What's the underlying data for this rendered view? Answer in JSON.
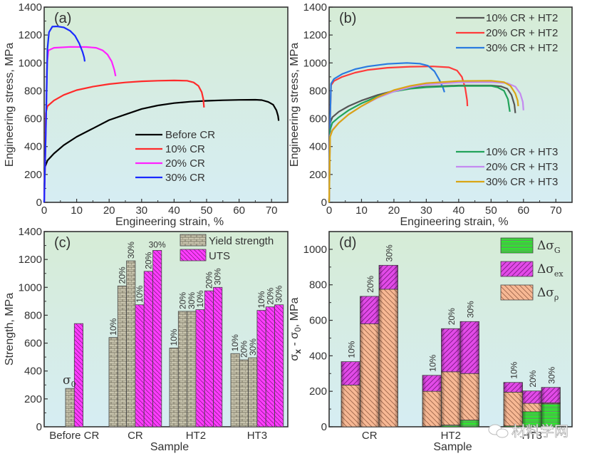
{
  "chart_data": [
    {
      "panel": "(a)",
      "type": "line",
      "xlabel": "Engineering strain, %",
      "ylabel": "Engineering stress, MPa",
      "xlim": [
        0,
        75
      ],
      "ylim": [
        0,
        1400
      ],
      "xticks": [
        0,
        10,
        20,
        30,
        40,
        50,
        60,
        70
      ],
      "yticks": [
        0,
        200,
        400,
        600,
        800,
        1000,
        1200,
        1400
      ],
      "legend_position": "bottom-center",
      "series": [
        {
          "name": "Before CR",
          "color": "#000000",
          "points": [
            [
              0,
              0
            ],
            [
              0.2,
              250
            ],
            [
              1,
              300
            ],
            [
              3,
              350
            ],
            [
              6,
              410
            ],
            [
              10,
              470
            ],
            [
              15,
              530
            ],
            [
              20,
              590
            ],
            [
              25,
              630
            ],
            [
              30,
              670
            ],
            [
              35,
              695
            ],
            [
              40,
              712
            ],
            [
              45,
              722
            ],
            [
              50,
              728
            ],
            [
              55,
              732
            ],
            [
              60,
              735
            ],
            [
              65,
              736
            ],
            [
              67,
              733
            ],
            [
              69,
              720
            ],
            [
              70.5,
              700
            ],
            [
              71.5,
              660
            ],
            [
              72,
              620
            ],
            [
              72.2,
              585
            ]
          ]
        },
        {
          "name": "10% CR",
          "color": "#ff2a2a",
          "points": [
            [
              0,
              0
            ],
            [
              0.3,
              300
            ],
            [
              0.5,
              640
            ],
            [
              1,
              690
            ],
            [
              3,
              730
            ],
            [
              6,
              770
            ],
            [
              10,
              805
            ],
            [
              15,
              830
            ],
            [
              20,
              848
            ],
            [
              25,
              860
            ],
            [
              30,
              868
            ],
            [
              35,
              872
            ],
            [
              40,
              874
            ],
            [
              44,
              872
            ],
            [
              46,
              860
            ],
            [
              47.5,
              835
            ],
            [
              48.5,
              790
            ],
            [
              49,
              740
            ],
            [
              49.2,
              680
            ]
          ]
        },
        {
          "name": "20% CR",
          "color": "#ff22ff",
          "points": [
            [
              0,
              0
            ],
            [
              0.5,
              500
            ],
            [
              0.9,
              1000
            ],
            [
              1.3,
              1090
            ],
            [
              3,
              1108
            ],
            [
              8,
              1115
            ],
            [
              13,
              1114
            ],
            [
              16,
              1108
            ],
            [
              18,
              1090
            ],
            [
              19.5,
              1060
            ],
            [
              20.8,
              1010
            ],
            [
              21.6,
              950
            ],
            [
              22,
              905
            ]
          ]
        },
        {
          "name": "30% CR",
          "color": "#1a2aff",
          "points": [
            [
              0,
              0
            ],
            [
              0.5,
              500
            ],
            [
              1,
              1100
            ],
            [
              1.5,
              1220
            ],
            [
              2.5,
              1260
            ],
            [
              4,
              1262
            ],
            [
              6,
              1255
            ],
            [
              8,
              1230
            ],
            [
              9.5,
              1195
            ],
            [
              10.8,
              1140
            ],
            [
              11.8,
              1080
            ],
            [
              12.3,
              1040
            ],
            [
              12.5,
              1010
            ]
          ]
        }
      ]
    },
    {
      "panel": "(b)",
      "type": "line",
      "xlabel": "Engineering strain, %",
      "ylabel": "Engineering stress, MPa",
      "xlim": [
        0,
        75
      ],
      "ylim": [
        0,
        1400
      ],
      "xticks": [
        0,
        10,
        20,
        30,
        40,
        50,
        60,
        70
      ],
      "yticks": [
        0,
        200,
        400,
        600,
        800,
        1000,
        1200,
        1400
      ],
      "legend_position": "top-right and bottom-right",
      "series": [
        {
          "name": "10% CR + HT2",
          "color": "#555555",
          "points": [
            [
              0,
              0
            ],
            [
              0.3,
              570
            ],
            [
              1,
              610
            ],
            [
              3,
              650
            ],
            [
              6,
              690
            ],
            [
              10,
              730
            ],
            [
              15,
              770
            ],
            [
              20,
              800
            ],
            [
              25,
              818
            ],
            [
              30,
              830
            ],
            [
              40,
              838
            ],
            [
              50,
              838
            ],
            [
              53,
              832
            ],
            [
              55,
              815
            ],
            [
              56.3,
              770
            ],
            [
              57.2,
              700
            ],
            [
              57.5,
              640
            ]
          ]
        },
        {
          "name": "20% CR + HT2",
          "color": "#ff3b3b",
          "points": [
            [
              0,
              0
            ],
            [
              0.3,
              600
            ],
            [
              0.6,
              840
            ],
            [
              1.5,
              870
            ],
            [
              4,
              900
            ],
            [
              8,
              930
            ],
            [
              12,
              950
            ],
            [
              18,
              965
            ],
            [
              25,
              973
            ],
            [
              32,
              975
            ],
            [
              37,
              968
            ],
            [
              39.5,
              945
            ],
            [
              41,
              900
            ],
            [
              42,
              820
            ],
            [
              42.6,
              730
            ],
            [
              42.7,
              690
            ]
          ]
        },
        {
          "name": "30% CR + HT2",
          "color": "#2a7ae0",
          "points": [
            [
              0,
              0
            ],
            [
              0.3,
              600
            ],
            [
              0.6,
              850
            ],
            [
              1.5,
              885
            ],
            [
              4,
              920
            ],
            [
              8,
              955
            ],
            [
              12,
              975
            ],
            [
              18,
              993
            ],
            [
              24,
              1000
            ],
            [
              28,
              995
            ],
            [
              30.5,
              980
            ],
            [
              32.5,
              940
            ],
            [
              34,
              880
            ],
            [
              35.2,
              820
            ],
            [
              35.6,
              790
            ]
          ]
        },
        {
          "name": "10% CR + HT3",
          "color": "#22a35a",
          "points": [
            [
              0,
              0
            ],
            [
              0.3,
              520
            ],
            [
              1,
              570
            ],
            [
              3,
              610
            ],
            [
              6,
              660
            ],
            [
              10,
              710
            ],
            [
              15,
              760
            ],
            [
              20,
              795
            ],
            [
              25,
              815
            ],
            [
              30,
              825
            ],
            [
              40,
              835
            ],
            [
              50,
              835
            ],
            [
              52,
              825
            ],
            [
              54,
              800
            ],
            [
              55.2,
              740
            ],
            [
              55.8,
              650
            ]
          ]
        },
        {
          "name": "20% CR + HT3",
          "color": "#c48af0",
          "points": [
            [
              0,
              0
            ],
            [
              0.3,
              480
            ],
            [
              1,
              520
            ],
            [
              3,
              570
            ],
            [
              6,
              630
            ],
            [
              10,
              690
            ],
            [
              15,
              750
            ],
            [
              20,
              795
            ],
            [
              25,
              825
            ],
            [
              30,
              845
            ],
            [
              40,
              860
            ],
            [
              50,
              862
            ],
            [
              55,
              855
            ],
            [
              57.5,
              830
            ],
            [
              59,
              780
            ],
            [
              59.8,
              720
            ],
            [
              60,
              660
            ]
          ]
        },
        {
          "name": "30% CR + HT3",
          "color": "#d9a515",
          "points": [
            [
              0,
              0
            ],
            [
              0.3,
              470
            ],
            [
              1,
              515
            ],
            [
              3,
              570
            ],
            [
              6,
              630
            ],
            [
              10,
              690
            ],
            [
              15,
              755
            ],
            [
              20,
              805
            ],
            [
              25,
              835
            ],
            [
              30,
              855
            ],
            [
              40,
              870
            ],
            [
              50,
              872
            ],
            [
              54,
              862
            ],
            [
              56,
              835
            ],
            [
              57.5,
              780
            ],
            [
              58.2,
              730
            ],
            [
              58.4,
              690
            ]
          ]
        }
      ]
    },
    {
      "panel": "(c)",
      "type": "bar",
      "xlabel": "Sample",
      "ylabel": "Strength, MPa",
      "ylim": [
        0,
        1400
      ],
      "yticks": [
        0,
        200,
        400,
        600,
        800,
        1000,
        1200,
        1400
      ],
      "categories": [
        "Before CR",
        "CR",
        "HT2",
        "HT3"
      ],
      "legend_position": "top-right",
      "series": [
        {
          "name": "Yield strength",
          "color": "#c8c4ad",
          "values_by_category": [
            [
              275
            ],
            [
              640,
              1010,
              1190
            ],
            [
              565,
              828,
              828
            ],
            [
              525,
              480,
              495
            ]
          ],
          "labels_by_category": [
            [
              "σ0"
            ],
            [
              "10%",
              "20%",
              "30%"
            ],
            [
              "10%",
              "20%",
              "30%"
            ],
            [
              "10%",
              "20%",
              "30%"
            ]
          ]
        },
        {
          "name": "UTS",
          "color": "#ff33ff",
          "values_by_category": [
            [
              740
            ],
            [
              875,
              1115,
              1265
            ],
            [
              840,
              975,
              1000
            ],
            [
              835,
              860,
              875
            ]
          ],
          "labels_by_category": [
            [
              ""
            ],
            [
              "10%",
              "20%",
              "30%"
            ],
            [
              "10%",
              "20%",
              "30%"
            ],
            [
              "10%",
              "20%",
              "30%"
            ]
          ]
        }
      ],
      "sigma0_label": {
        "base": "σ",
        "sub": "0"
      }
    },
    {
      "panel": "(d)",
      "type": "bar",
      "stacked": true,
      "xlabel": "Sample",
      "ylabel": "σx - σ0, MPa",
      "ylim": [
        0,
        1100
      ],
      "yticks": [
        0,
        200,
        400,
        600,
        800,
        1000
      ],
      "categories": [
        "CR",
        "HT2",
        "HT3"
      ],
      "bar_labels": [
        "10%",
        "20%",
        "30%"
      ],
      "legend_position": "top-right",
      "series": [
        {
          "name": "Δσ_G",
          "label_base": "Δσ",
          "label_sub": "G",
          "color": "#22e622",
          "values_by_category": [
            [
              0,
              0,
              0
            ],
            [
              3,
              10,
              38
            ],
            [
              5,
              85,
              130
            ]
          ]
        },
        {
          "name": "Δσ_ρ",
          "label_base": "Δσ",
          "label_sub": "ρ",
          "color": "#f5b08a",
          "values_by_category": [
            [
              235,
              580,
              775
            ],
            [
              197,
              300,
              262
            ],
            [
              190,
              47,
              5
            ]
          ]
        },
        {
          "name": "Δσ_ex",
          "label_base": "Δσ",
          "label_sub": "ex",
          "color": "#e040e8",
          "values_by_category": [
            [
              132,
              155,
              135
            ],
            [
              90,
              243,
              293
            ],
            [
              55,
              70,
              87
            ]
          ]
        }
      ]
    }
  ],
  "watermark": "材料学网"
}
